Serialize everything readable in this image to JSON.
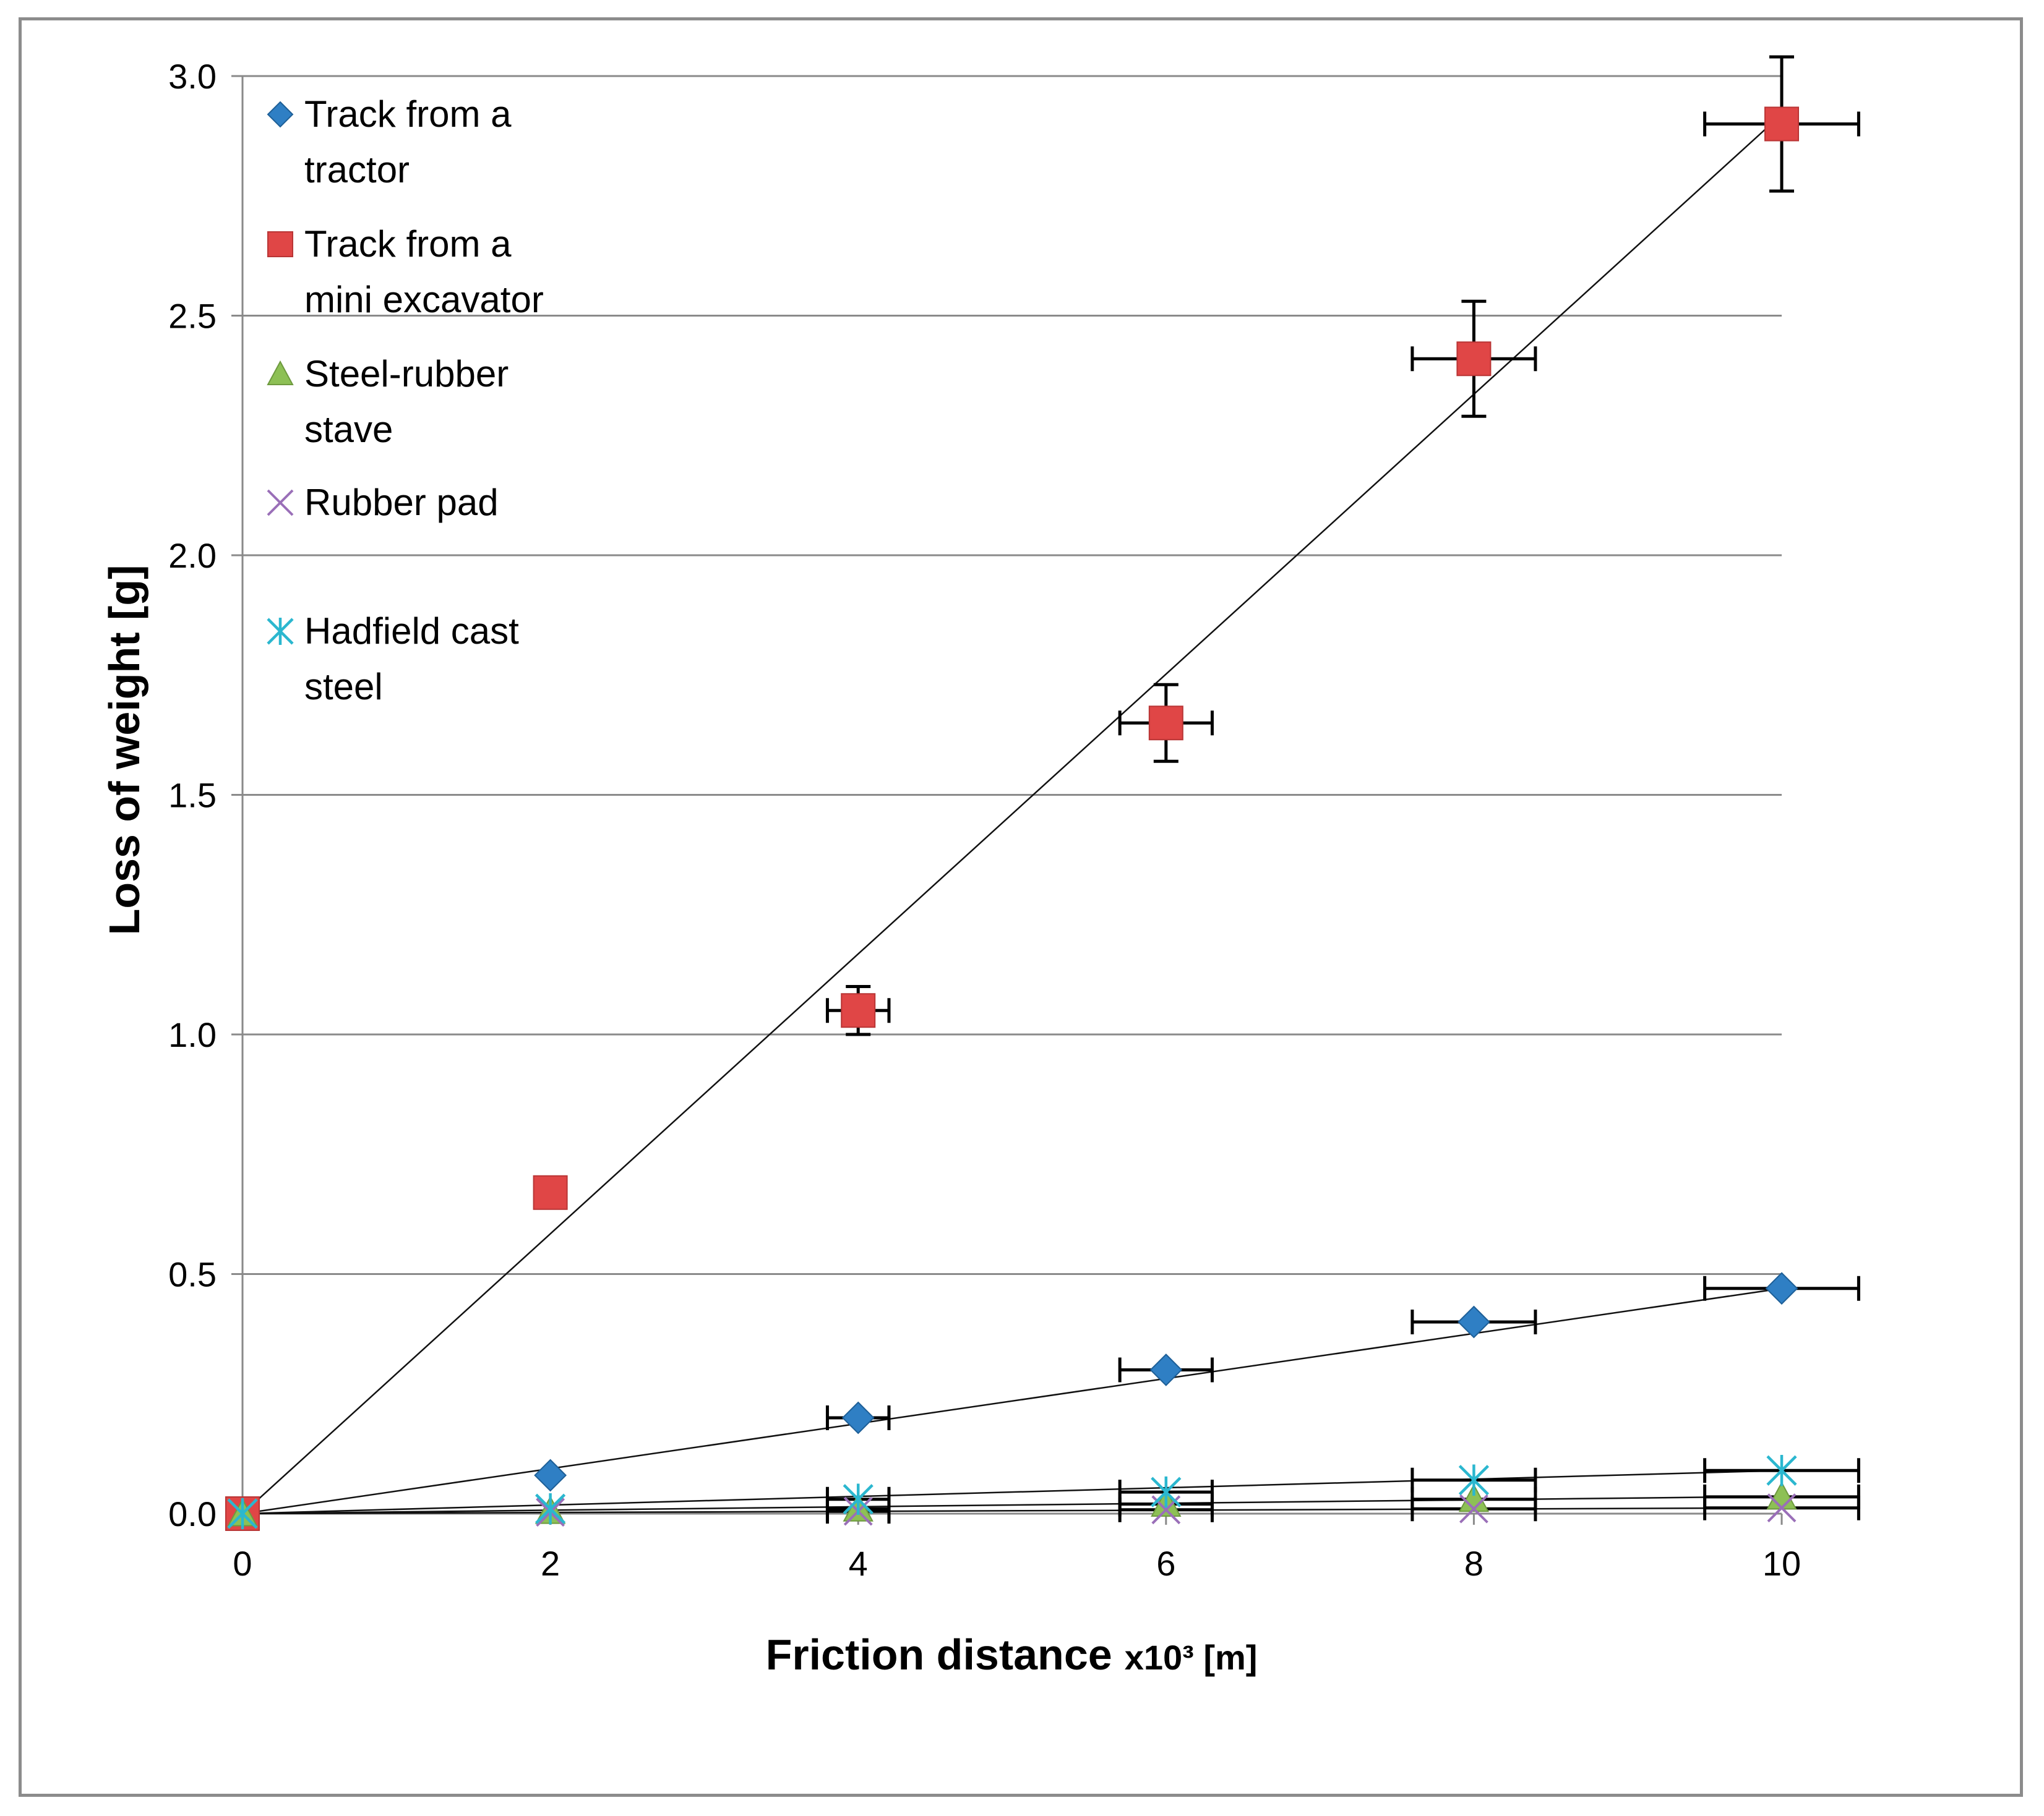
{
  "chart_data": {
    "type": "scatter",
    "title": "",
    "xlabel": "Friction distance",
    "xlabel_suffix": "x10³ [m]",
    "ylabel": "Loss of weight [g]",
    "xlim": [
      0,
      10
    ],
    "ylim": [
      0,
      3.0
    ],
    "x_ticks": [
      0,
      2,
      4,
      6,
      8,
      10
    ],
    "x_tick_labels": [
      "0",
      "2",
      "4",
      "6",
      "8",
      "10"
    ],
    "y_ticks": [
      0,
      0.5,
      1.0,
      1.5,
      2.0,
      2.5,
      3.0
    ],
    "y_tick_labels": [
      "0.0",
      "0.5",
      "1.0",
      "1.5",
      "2.0",
      "2.5",
      "3.0"
    ],
    "grid": "horizontal",
    "legend_position": "top-left",
    "series": [
      {
        "name": "Track from a tractor",
        "legend_lines": [
          "Track from a",
          "tractor"
        ],
        "marker": "diamond",
        "color": "#2f7fc4",
        "x": [
          0,
          2,
          4,
          6,
          8,
          10
        ],
        "y": [
          0,
          0.08,
          0.2,
          0.3,
          0.4,
          0.47
        ],
        "x_err": [
          0,
          0,
          0.2,
          0.3,
          0.4,
          0.5
        ],
        "y_err": [
          0,
          0,
          0,
          0,
          0,
          0
        ],
        "trendline": {
          "slope": 0.047,
          "intercept": 0
        }
      },
      {
        "name": "Track from a mini excavator",
        "legend_lines": [
          "Track from a",
          "mini excavator"
        ],
        "marker": "square",
        "color": "#e04646",
        "x": [
          0,
          2,
          4,
          6,
          8,
          10
        ],
        "y": [
          0,
          0.67,
          1.05,
          1.65,
          2.41,
          2.9
        ],
        "x_err": [
          0,
          0,
          0.2,
          0.3,
          0.4,
          0.5
        ],
        "y_err": [
          0,
          0,
          0.05,
          0.08,
          0.12,
          0.14
        ],
        "trendline": {
          "slope": 0.292,
          "intercept": 0
        }
      },
      {
        "name": "Steel-rubber stave",
        "legend_lines": [
          "Steel-rubber",
          "stave"
        ],
        "marker": "triangle",
        "color": "#8dc055",
        "x": [
          0,
          2,
          4,
          6,
          8,
          10
        ],
        "y": [
          0,
          0.005,
          0.01,
          0.02,
          0.03,
          0.035
        ],
        "x_err": [
          0,
          0,
          0.2,
          0.3,
          0.4,
          0.5
        ],
        "y_err": [
          0,
          0,
          0,
          0,
          0,
          0
        ],
        "trendline": {
          "slope": 0.0036,
          "intercept": 0
        }
      },
      {
        "name": "Rubber pad",
        "legend_lines": [
          "Rubber pad"
        ],
        "marker": "x",
        "color": "#9a6fb8",
        "x": [
          0,
          2,
          4,
          6,
          8,
          10
        ],
        "y": [
          0,
          0.003,
          0.005,
          0.008,
          0.01,
          0.012
        ],
        "x_err": [
          0,
          0,
          0.2,
          0.3,
          0.4,
          0.5
        ],
        "y_err": [
          0,
          0,
          0,
          0,
          0,
          0
        ],
        "trendline": {
          "slope": 0.0012,
          "intercept": 0
        }
      },
      {
        "name": "Hadfield cast steel",
        "legend_lines": [
          "Hadfield cast",
          "steel"
        ],
        "marker": "asterisk",
        "color": "#2bb7cf",
        "x": [
          0,
          2,
          4,
          6,
          8,
          10
        ],
        "y": [
          0,
          0.01,
          0.03,
          0.045,
          0.07,
          0.09
        ],
        "x_err": [
          0,
          0,
          0.2,
          0.3,
          0.4,
          0.5
        ],
        "y_err": [
          0,
          0,
          0,
          0,
          0,
          0
        ],
        "trendline": {
          "slope": 0.009,
          "intercept": 0
        }
      }
    ]
  }
}
